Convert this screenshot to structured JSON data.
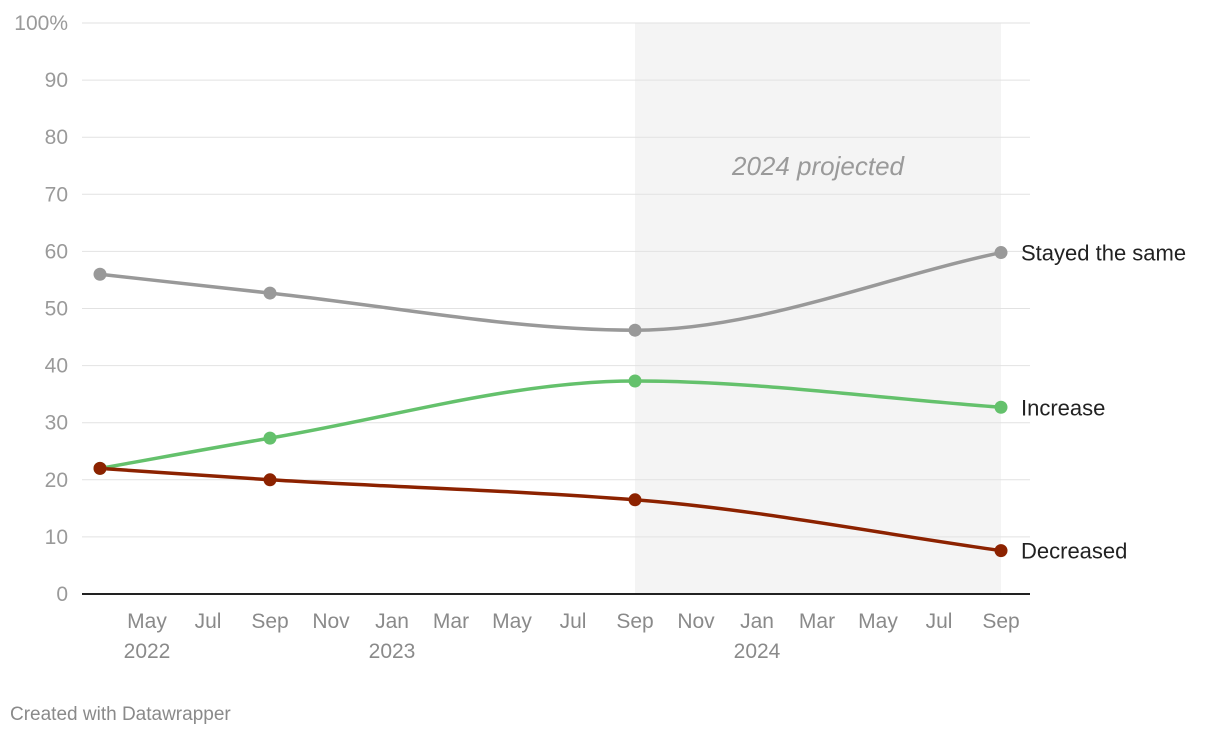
{
  "chart_data": {
    "type": "line",
    "y_unit_suffix": "%",
    "ylim": [
      0,
      100
    ],
    "y_ticks": [
      0,
      10,
      20,
      30,
      40,
      50,
      60,
      70,
      80,
      90,
      100
    ],
    "grid": true,
    "x_domain": [
      "2022-03-15",
      "2024-09-10"
    ],
    "x_ticks": [
      {
        "date": "2022-05-01",
        "label": "May"
      },
      {
        "date": "2022-07-01",
        "label": "Jul"
      },
      {
        "date": "2022-09-01",
        "label": "Sep"
      },
      {
        "date": "2022-11-01",
        "label": "Nov"
      },
      {
        "date": "2023-01-01",
        "label": "Jan"
      },
      {
        "date": "2023-03-01",
        "label": "Mar"
      },
      {
        "date": "2023-05-01",
        "label": "May"
      },
      {
        "date": "2023-07-01",
        "label": "Jul"
      },
      {
        "date": "2023-09-01",
        "label": "Sep"
      },
      {
        "date": "2023-11-01",
        "label": "Nov"
      },
      {
        "date": "2024-01-01",
        "label": "Jan"
      },
      {
        "date": "2024-03-01",
        "label": "Mar"
      },
      {
        "date": "2024-05-01",
        "label": "May"
      },
      {
        "date": "2024-07-01",
        "label": "Jul"
      },
      {
        "date": "2024-09-01",
        "label": "Sep"
      }
    ],
    "year_labels": [
      {
        "date": "2022-05-01",
        "label": "2022"
      },
      {
        "date": "2023-01-01",
        "label": "2023"
      },
      {
        "date": "2024-01-01",
        "label": "2024"
      }
    ],
    "shaded_region": {
      "start": "2023-09-01",
      "end": "2024-09-01",
      "label": "2024 projected",
      "color": "#f4f4f4"
    },
    "x": [
      "2022-03-15",
      "2022-09-01",
      "2023-09-01",
      "2024-09-01"
    ],
    "series": [
      {
        "name": "Stayed the same",
        "color": "#999999",
        "values": [
          56,
          52.7,
          46.2,
          59.8
        ]
      },
      {
        "name": "Increase",
        "color": "#64c16c",
        "values": [
          22,
          27.3,
          37.3,
          32.7
        ]
      },
      {
        "name": "Decreased",
        "color": "#8c2200",
        "values": [
          22,
          20,
          16.5,
          7.6
        ]
      }
    ]
  },
  "footer": {
    "credit": "Created with Datawrapper"
  }
}
